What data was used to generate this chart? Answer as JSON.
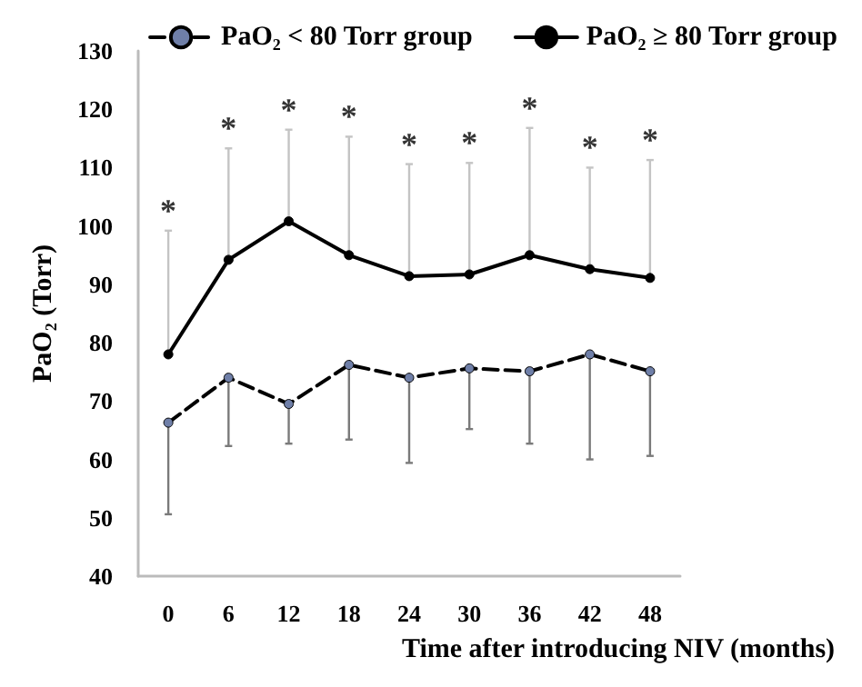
{
  "chart_data": {
    "type": "line",
    "ylabel": "PaO₂ (Torr)",
    "xlabel": "Time after introducing NIV (months)",
    "categories": [
      "0",
      "6",
      "12",
      "18",
      "24",
      "30",
      "36",
      "42",
      "48"
    ],
    "ylim": [
      40,
      130
    ],
    "yticks": [
      40,
      50,
      60,
      70,
      80,
      90,
      100,
      110,
      120,
      130
    ],
    "series": [
      {
        "name": "PaO₂ < 80 Torr group",
        "color": "#6f7fa8",
        "line_style": "dashed",
        "values": [
          66.3,
          74,
          69.5,
          76.2,
          74,
          75.6,
          75.1,
          78,
          75.1
        ],
        "errors": [
          [
            50.6,
            66.3
          ],
          [
            62.3,
            74
          ],
          [
            62.7,
            69.5
          ],
          [
            63.4,
            76.2
          ],
          [
            59.4,
            74
          ],
          [
            65.2,
            75.6
          ],
          [
            62.7,
            75.1
          ],
          [
            60,
            78
          ],
          [
            60.6,
            75.1
          ]
        ]
      },
      {
        "name": "PaO₂ ≥ 80 Torr group",
        "color": "#000000",
        "line_style": "solid",
        "values": [
          78,
          94.2,
          100.8,
          95,
          91.4,
          91.7,
          95,
          92.6,
          91.1
        ],
        "errors": [
          [
            78,
            99.2
          ],
          [
            94.2,
            113.3
          ],
          [
            100.8,
            116.5
          ],
          [
            95,
            115.3
          ],
          [
            91.4,
            110.6
          ],
          [
            91.7,
            110.8
          ],
          [
            95,
            116.8
          ],
          [
            92.6,
            110
          ],
          [
            91.1,
            111.3
          ]
        ]
      }
    ],
    "marker": "circle",
    "legend": "top",
    "grid": false,
    "annotations": [
      {
        "text": "*",
        "x": "0",
        "y": 99.2
      },
      {
        "text": "*",
        "x": "6",
        "y": 113.3
      },
      {
        "text": "*",
        "x": "12",
        "y": 116.5
      },
      {
        "text": "*",
        "x": "18",
        "y": 115.3
      },
      {
        "text": "*",
        "x": "24",
        "y": 110.6
      },
      {
        "text": "*",
        "x": "30",
        "y": 110.8
      },
      {
        "text": "*",
        "x": "36",
        "y": 116.8
      },
      {
        "text": "*",
        "x": "42",
        "y": 110
      },
      {
        "text": "*",
        "x": "48",
        "y": 111.3
      }
    ]
  }
}
